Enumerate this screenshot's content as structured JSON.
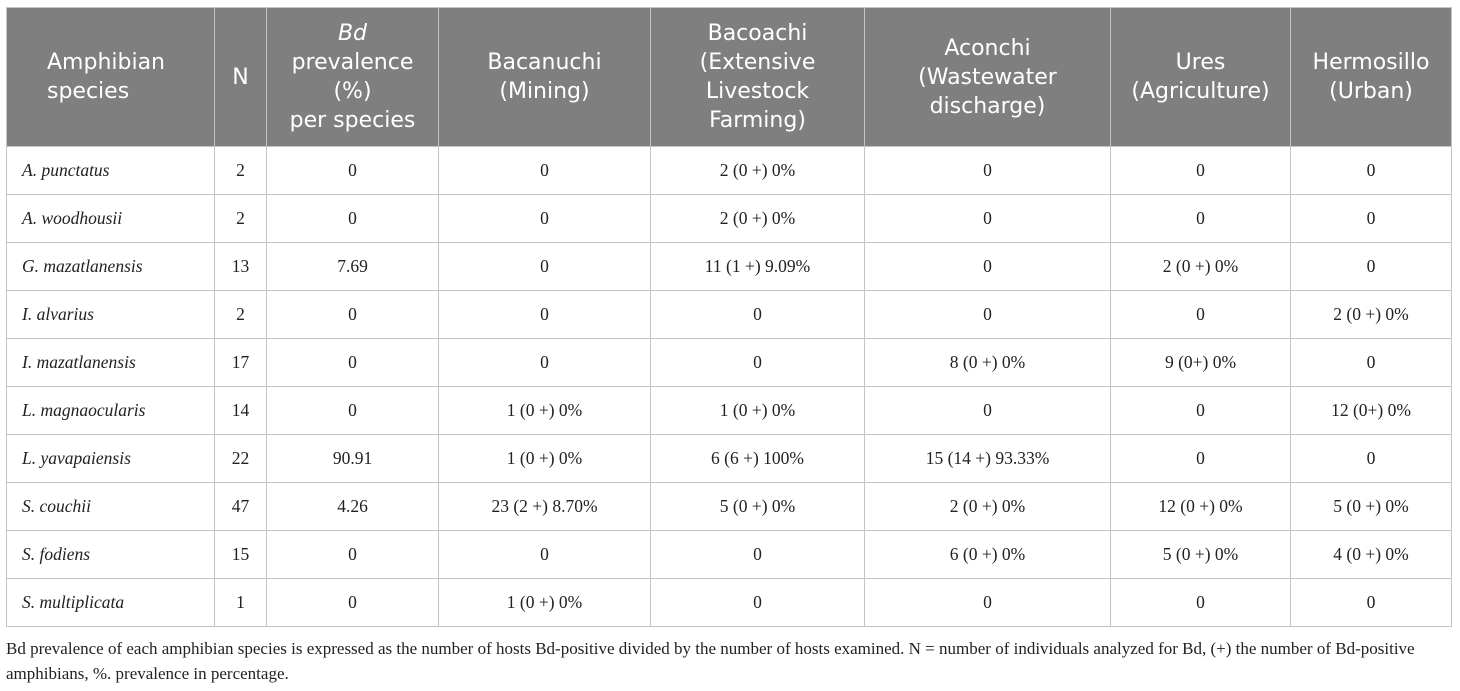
{
  "headers": {
    "species_lines": [
      "Amphibian",
      "species"
    ],
    "n": "N",
    "prevalence": {
      "italic": "Bd",
      "lines": [
        "prevalence",
        "(%)",
        "per species"
      ]
    },
    "sites": [
      [
        "Bacanuchi",
        "(Mining)"
      ],
      [
        "Bacoachi",
        "(Extensive",
        "Livestock",
        "Farming)"
      ],
      [
        "Aconchi",
        "(Wastewater",
        "discharge)"
      ],
      [
        "Ures",
        "(Agriculture)"
      ],
      [
        "Hermosillo",
        "(Urban)"
      ]
    ]
  },
  "rows": [
    {
      "species": "A. punctatus",
      "n": "2",
      "prev": "0",
      "sites": [
        "0",
        "2 (0 +) 0%",
        "0",
        "0",
        "0"
      ]
    },
    {
      "species": "A. woodhousii",
      "n": "2",
      "prev": "0",
      "sites": [
        "0",
        "2 (0 +) 0%",
        "0",
        "0",
        "0"
      ]
    },
    {
      "species": "G. mazatlanensis",
      "n": "13",
      "prev": "7.69",
      "sites": [
        "0",
        "11 (1 +) 9.09%",
        "0",
        "2 (0 +) 0%",
        "0"
      ]
    },
    {
      "species": "I. alvarius",
      "n": "2",
      "prev": "0",
      "sites": [
        "0",
        "0",
        "0",
        "0",
        "2 (0 +) 0%"
      ]
    },
    {
      "species": "I. mazatlanensis",
      "n": "17",
      "prev": "0",
      "sites": [
        "0",
        "0",
        "8 (0 +) 0%",
        "9 (0+) 0%",
        "0"
      ]
    },
    {
      "species": "L. magnaocularis",
      "n": "14",
      "prev": "0",
      "sites": [
        "1 (0 +) 0%",
        "1 (0 +) 0%",
        "0",
        "0",
        "12 (0+) 0%"
      ]
    },
    {
      "species": "L. yavapaiensis",
      "n": "22",
      "prev": "90.91",
      "sites": [
        "1 (0 +) 0%",
        "6 (6 +) 100%",
        "15 (14 +) 93.33%",
        "0",
        "0"
      ]
    },
    {
      "species": "S. couchii",
      "n": "47",
      "prev": "4.26",
      "sites": [
        "23 (2 +) 8.70%",
        "5 (0 +) 0%",
        "2 (0 +) 0%",
        "12 (0 +) 0%",
        "5 (0 +) 0%"
      ]
    },
    {
      "species": "S. fodiens",
      "n": "15",
      "prev": "0",
      "sites": [
        "0",
        "0",
        "6 (0 +) 0%",
        "5 (0 +) 0%",
        "4 (0 +) 0%"
      ]
    },
    {
      "species": "S. multiplicata",
      "n": "1",
      "prev": "0",
      "sites": [
        "1 (0 +) 0%",
        "0",
        "0",
        "0",
        "0"
      ]
    }
  ],
  "footnote": "Bd prevalence of each amphibian species is expressed as the number of hosts Bd-positive divided by the number of hosts examined. N = number of individuals analyzed for Bd, (+) the number of Bd-positive amphibians, %. prevalence in percentage.",
  "colors": {
    "header_bg": "#7f7f7f",
    "header_text": "#ffffff",
    "border": "#c4c4c4"
  }
}
